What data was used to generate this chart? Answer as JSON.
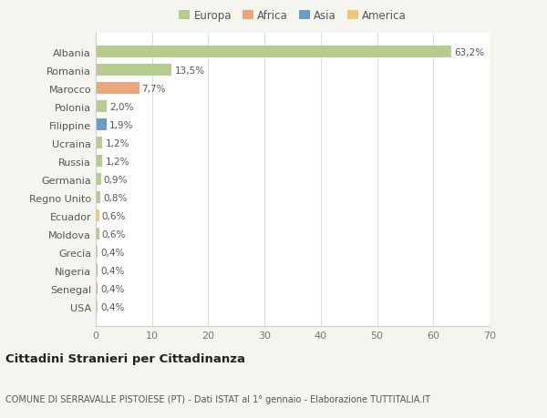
{
  "countries": [
    "Albania",
    "Romania",
    "Marocco",
    "Polonia",
    "Filippine",
    "Ucraina",
    "Russia",
    "Germania",
    "Regno Unito",
    "Ecuador",
    "Moldova",
    "Grecia",
    "Nigeria",
    "Senegal",
    "USA"
  ],
  "values": [
    63.2,
    13.5,
    7.7,
    2.0,
    1.9,
    1.2,
    1.2,
    0.9,
    0.8,
    0.6,
    0.6,
    0.4,
    0.4,
    0.4,
    0.4
  ],
  "labels": [
    "63,2%",
    "13,5%",
    "7,7%",
    "2,0%",
    "1,9%",
    "1,2%",
    "1,2%",
    "0,9%",
    "0,8%",
    "0,6%",
    "0,6%",
    "0,4%",
    "0,4%",
    "0,4%",
    "0,4%"
  ],
  "colors": [
    "#b5cc8e",
    "#b5cc8e",
    "#e8a87c",
    "#b5cc8e",
    "#6b9bc9",
    "#b5cc8e",
    "#b5cc8e",
    "#b5cc8e",
    "#b5cc8e",
    "#f0c96e",
    "#b5cc8e",
    "#b5cc8e",
    "#e8a87c",
    "#e8a87c",
    "#f0c96e"
  ],
  "legend_labels": [
    "Europa",
    "Africa",
    "Asia",
    "America"
  ],
  "legend_colors": [
    "#b5cc8e",
    "#e8a87c",
    "#6b9bc9",
    "#f0c96e"
  ],
  "title": "Cittadini Stranieri per Cittadinanza",
  "subtitle": "COMUNE DI SERRAVALLE PISTOIESE (PT) - Dati ISTAT al 1° gennaio - Elaborazione TUTTITALIA.IT",
  "xlim": [
    0,
    70
  ],
  "xticks": [
    0,
    10,
    20,
    30,
    40,
    50,
    60,
    70
  ],
  "bg_color": "#f5f5f0",
  "plot_bg_color": "#ffffff"
}
